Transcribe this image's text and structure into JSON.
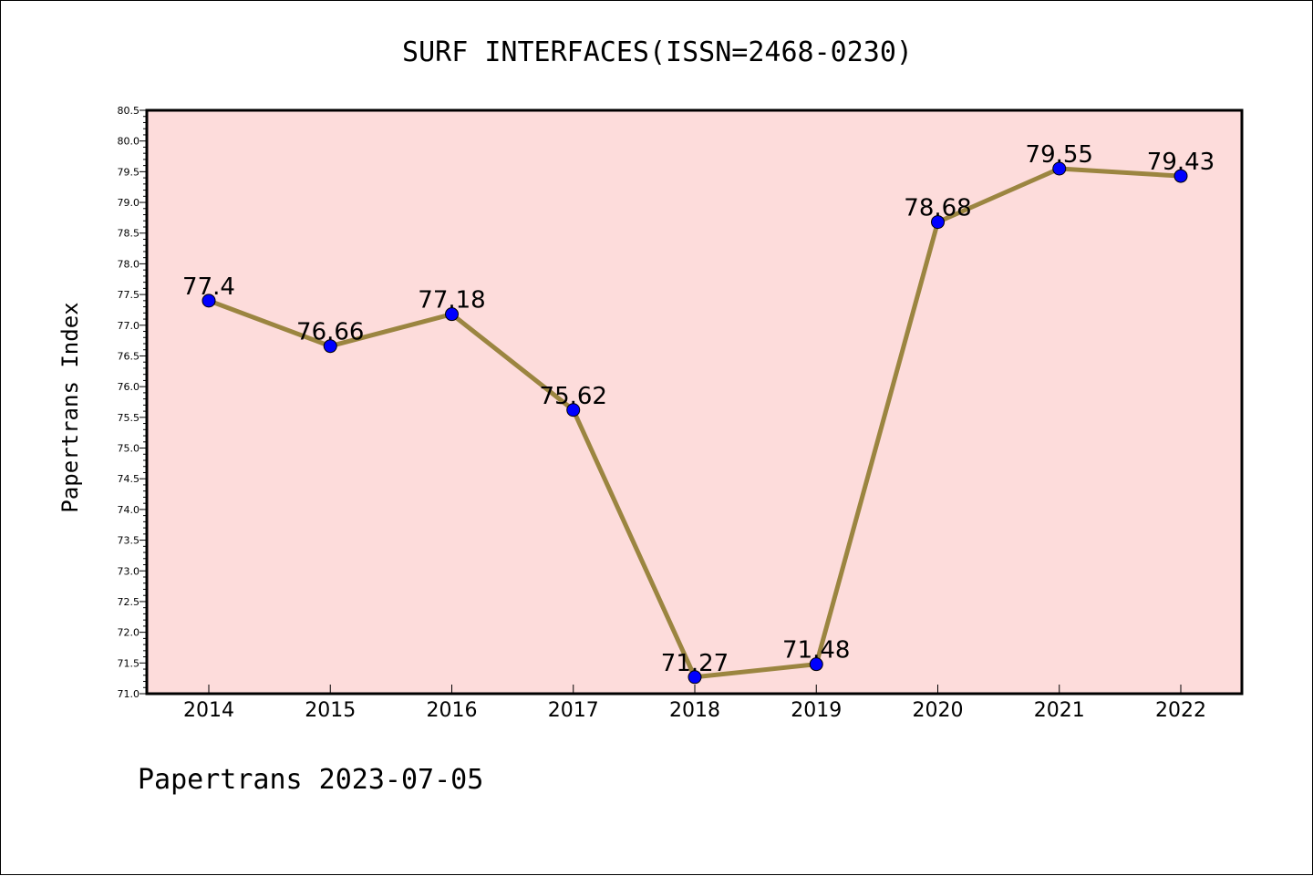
{
  "chart_data": {
    "type": "line",
    "title": "SURF INTERFACES(ISSN=2468-0230)",
    "xlabel": "",
    "ylabel": "Papertrans Index",
    "categories": [
      "2014",
      "2015",
      "2016",
      "2017",
      "2018",
      "2019",
      "2020",
      "2021",
      "2022"
    ],
    "series": [
      {
        "values": [
          77.4,
          76.66,
          77.18,
          75.62,
          71.27,
          71.48,
          78.68,
          79.55,
          79.43
        ],
        "labels": [
          "77.4",
          "76.66",
          "77.18",
          "75.62",
          "71.27",
          "71.48",
          "78.68",
          "79.55",
          "79.43"
        ]
      }
    ],
    "ylim": [
      71.0,
      80.5
    ],
    "yticks": [
      "71.0",
      "71.5",
      "72.0",
      "72.5",
      "73.0",
      "73.5",
      "74.0",
      "74.5",
      "75.0",
      "75.5",
      "76.0",
      "76.5",
      "77.0",
      "77.5",
      "78.0",
      "78.5",
      "79.0",
      "79.5",
      "80.0",
      "80.5"
    ],
    "grid": false,
    "colors": {
      "plot_background": "#fddcdb",
      "line": "#9b8540",
      "marker": "#0000ff",
      "axis": "#000000"
    },
    "footer": "Papertrans 2023-07-05"
  }
}
